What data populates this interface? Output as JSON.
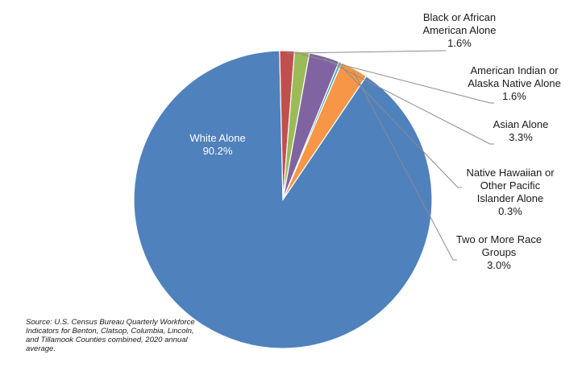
{
  "chart_data": {
    "type": "pie",
    "title": "",
    "slices": [
      {
        "label_lines": [
          "White Alone"
        ],
        "value": 90.2,
        "value_label": "90.2%",
        "color": "#4f81bd"
      },
      {
        "label_lines": [
          "Black or African",
          "American Alone"
        ],
        "value": 1.6,
        "value_label": "1.6%",
        "color": "#c0504d"
      },
      {
        "label_lines": [
          "American Indian or",
          "Alaska Native Alone"
        ],
        "value": 1.6,
        "value_label": "1.6%",
        "color": "#9bbb59"
      },
      {
        "label_lines": [
          "Asian Alone"
        ],
        "value": 3.3,
        "value_label": "3.3%",
        "color": "#8064a2"
      },
      {
        "label_lines": [
          "Native Hawaiian or",
          "Other Pacific",
          "Islander Alone"
        ],
        "value": 0.3,
        "value_label": "0.3%",
        "color": "#4bacc6"
      },
      {
        "label_lines": [
          "Two or More Race",
          "Groups"
        ],
        "value": 3.0,
        "value_label": "3.0%",
        "color": "#f79646"
      }
    ]
  },
  "source_note": "Source: U.S. Census Bureau Quarterly Workforce Indicators for Benton, Clatsop, Columbia, Lincoln, and Tillamook Counties combined, 2020 annual average."
}
